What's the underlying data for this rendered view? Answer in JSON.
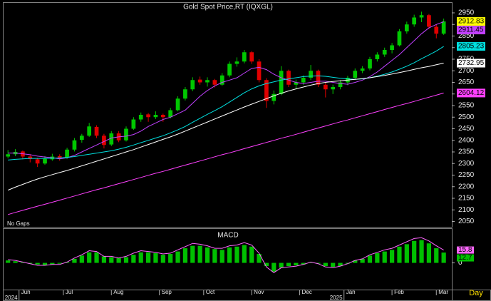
{
  "chart_data": [
    {
      "type": "candlestick",
      "title": "Gold Spot Price,RT (IQXGL)",
      "annotation": "No Gaps",
      "up_color": "#00c800",
      "down_color": "#e00000",
      "ylim": [
        2030,
        2990
      ],
      "yticks": [
        2050,
        2100,
        2150,
        2200,
        2250,
        2300,
        2350,
        2400,
        2450,
        2500,
        2550,
        2600,
        2650,
        2700,
        2750,
        2800,
        2850,
        2900,
        2950
      ],
      "xlim": [
        -0.5,
        60
      ],
      "last_color": "#ffff00",
      "ohlc": [
        [
          2330,
          2358,
          2322,
          2340
        ],
        [
          2340,
          2362,
          2332,
          2350
        ],
        [
          2352,
          2356,
          2318,
          2330
        ],
        [
          2330,
          2340,
          2305,
          2320
        ],
        [
          2318,
          2325,
          2285,
          2300
        ],
        [
          2300,
          2332,
          2295,
          2320
        ],
        [
          2318,
          2342,
          2312,
          2330
        ],
        [
          2332,
          2340,
          2312,
          2325
        ],
        [
          2325,
          2368,
          2320,
          2360
        ],
        [
          2360,
          2410,
          2352,
          2400
        ],
        [
          2402,
          2428,
          2390,
          2420
        ],
        [
          2420,
          2475,
          2415,
          2460
        ],
        [
          2458,
          2465,
          2410,
          2420
        ],
        [
          2420,
          2428,
          2365,
          2380
        ],
        [
          2382,
          2440,
          2375,
          2430
        ],
        [
          2430,
          2440,
          2392,
          2400
        ],
        [
          2400,
          2460,
          2395,
          2450
        ],
        [
          2450,
          2500,
          2445,
          2490
        ],
        [
          2490,
          2520,
          2480,
          2510
        ],
        [
          2512,
          2518,
          2480,
          2500
        ],
        [
          2500,
          2525,
          2492,
          2510
        ],
        [
          2510,
          2515,
          2480,
          2500
        ],
        [
          2500,
          2540,
          2495,
          2530
        ],
        [
          2530,
          2590,
          2525,
          2580
        ],
        [
          2580,
          2630,
          2572,
          2620
        ],
        [
          2620,
          2672,
          2612,
          2660
        ],
        [
          2662,
          2675,
          2640,
          2650
        ],
        [
          2650,
          2672,
          2632,
          2660
        ],
        [
          2660,
          2665,
          2628,
          2640
        ],
        [
          2640,
          2690,
          2635,
          2680
        ],
        [
          2680,
          2740,
          2672,
          2730
        ],
        [
          2730,
          2758,
          2718,
          2740
        ],
        [
          2740,
          2790,
          2732,
          2780
        ],
        [
          2780,
          2785,
          2730,
          2740
        ],
        [
          2740,
          2750,
          2650,
          2660
        ],
        [
          2660,
          2668,
          2540,
          2570
        ],
        [
          2570,
          2615,
          2555,
          2600
        ],
        [
          2600,
          2720,
          2595,
          2700
        ],
        [
          2700,
          2705,
          2630,
          2640
        ],
        [
          2640,
          2662,
          2620,
          2650
        ],
        [
          2650,
          2680,
          2640,
          2670
        ],
        [
          2670,
          2725,
          2660,
          2700
        ],
        [
          2700,
          2705,
          2630,
          2640
        ],
        [
          2640,
          2648,
          2585,
          2620
        ],
        [
          2620,
          2640,
          2600,
          2630
        ],
        [
          2630,
          2660,
          2620,
          2650
        ],
        [
          2650,
          2678,
          2638,
          2670
        ],
        [
          2670,
          2710,
          2662,
          2700
        ],
        [
          2700,
          2720,
          2690,
          2710
        ],
        [
          2710,
          2760,
          2702,
          2750
        ],
        [
          2750,
          2780,
          2740,
          2770
        ],
        [
          2770,
          2800,
          2760,
          2790
        ],
        [
          2790,
          2820,
          2775,
          2810
        ],
        [
          2810,
          2880,
          2805,
          2870
        ],
        [
          2870,
          2912,
          2860,
          2900
        ],
        [
          2900,
          2942,
          2890,
          2930
        ],
        [
          2930,
          2955,
          2910,
          2940
        ],
        [
          2940,
          2945,
          2880,
          2890
        ],
        [
          2890,
          2900,
          2840,
          2860
        ],
        [
          2860,
          2925,
          2855,
          2912.83
        ]
      ],
      "series": [
        {
          "color": "#c040ff",
          "values": [
            2345,
            2345,
            2342,
            2338,
            2332,
            2328,
            2325,
            2320,
            2325,
            2335,
            2350,
            2365,
            2380,
            2395,
            2410,
            2415,
            2418,
            2425,
            2440,
            2460,
            2475,
            2490,
            2500,
            2515,
            2530,
            2560,
            2590,
            2615,
            2635,
            2650,
            2660,
            2670,
            2690,
            2710,
            2715,
            2705,
            2685,
            2670,
            2660,
            2650,
            2645,
            2650,
            2655,
            2655,
            2650,
            2645,
            2642,
            2650,
            2660,
            2675,
            2695,
            2720,
            2745,
            2770,
            2800,
            2830,
            2860,
            2885,
            2900,
            2911.45
          ]
        },
        {
          "color": "#00e0e0",
          "values": [
            2315,
            2318,
            2320,
            2322,
            2322,
            2322,
            2323,
            2324,
            2326,
            2330,
            2335,
            2340,
            2345,
            2350,
            2355,
            2362,
            2370,
            2380,
            2390,
            2400,
            2410,
            2420,
            2432,
            2445,
            2460,
            2478,
            2495,
            2512,
            2528,
            2545,
            2565,
            2585,
            2605,
            2622,
            2635,
            2645,
            2652,
            2660,
            2665,
            2670,
            2675,
            2677,
            2678,
            2676,
            2672,
            2668,
            2665,
            2663,
            2665,
            2670,
            2677,
            2685,
            2695,
            2707,
            2720,
            2735,
            2752,
            2768,
            2785,
            2805.23
          ]
        },
        {
          "color": "#ffffff",
          "values": [
            2185,
            2198,
            2210,
            2222,
            2233,
            2243,
            2252,
            2261,
            2270,
            2280,
            2290,
            2300,
            2310,
            2320,
            2330,
            2340,
            2350,
            2360,
            2371,
            2382,
            2393,
            2404,
            2415,
            2427,
            2440,
            2453,
            2466,
            2479,
            2492,
            2505,
            2518,
            2531,
            2544,
            2556,
            2568,
            2580,
            2592,
            2603,
            2613,
            2622,
            2630,
            2638,
            2645,
            2650,
            2654,
            2657,
            2660,
            2663,
            2666,
            2670,
            2675,
            2680,
            2686,
            2692,
            2699,
            2706,
            2713,
            2719,
            2726,
            2732.95
          ]
        },
        {
          "color": "#ff40ff",
          "values": [
            2080,
            2089,
            2098,
            2107,
            2116,
            2124,
            2133,
            2142,
            2151,
            2160,
            2169,
            2178,
            2187,
            2195,
            2204,
            2213,
            2222,
            2231,
            2240,
            2249,
            2258,
            2266,
            2275,
            2284,
            2293,
            2302,
            2311,
            2320,
            2329,
            2338,
            2346,
            2355,
            2364,
            2373,
            2382,
            2391,
            2400,
            2409,
            2417,
            2426,
            2435,
            2444,
            2453,
            2462,
            2471,
            2480,
            2488,
            2497,
            2506,
            2515,
            2524,
            2533,
            2542,
            2551,
            2559,
            2568,
            2577,
            2586,
            2595,
            2604.12
          ]
        }
      ]
    },
    {
      "type": "macd",
      "title": "MACD",
      "ylim": [
        -32,
        40
      ],
      "yticks": [
        0
      ],
      "xlim": [
        -0.5,
        60
      ],
      "xticks": [
        {
          "value": 1.5,
          "label": "Jun"
        },
        {
          "value": 7.5,
          "label": "Jul"
        },
        {
          "value": 14,
          "label": "Aug"
        },
        {
          "value": 20.5,
          "label": "Sep"
        },
        {
          "value": 26.5,
          "label": "Oct"
        },
        {
          "value": 33,
          "label": "Nov"
        },
        {
          "value": 39.5,
          "label": "Dec"
        },
        {
          "value": 45.5,
          "label": "Jan"
        },
        {
          "value": 52,
          "label": "Feb"
        },
        {
          "value": 58,
          "label": "Mar"
        }
      ],
      "year_ticks": [
        {
          "value": 1.5,
          "label": "2024"
        },
        {
          "value": 45.5,
          "label": "2025"
        }
      ],
      "period": "Day",
      "series": [
        {
          "color": "#00c000",
          "style": "bar",
          "values": [
            3,
            2,
            1,
            -1,
            -2,
            -3,
            -2,
            -1,
            1,
            5,
            9,
            13,
            13,
            8,
            7,
            6,
            7,
            10,
            13,
            13,
            12,
            10,
            11,
            14,
            18,
            21,
            21,
            19,
            17,
            16,
            19,
            20,
            22,
            20,
            11,
            -4,
            -11,
            -6,
            -4,
            -3,
            -2,
            1,
            -1,
            -4,
            -5,
            -4,
            -1,
            3,
            5,
            9,
            12,
            14,
            16,
            20,
            23,
            27,
            28,
            24,
            18,
            12.7
          ]
        },
        {
          "color": "#ff66ff",
          "style": "line",
          "values": [
            4,
            3,
            1,
            -1,
            -3,
            -3,
            -2,
            -2,
            1,
            6,
            10,
            15,
            14,
            8,
            8,
            6,
            8,
            12,
            15,
            14,
            13,
            11,
            12,
            16,
            20,
            24,
            23,
            21,
            18,
            18,
            21,
            22,
            25,
            22,
            12,
            -5,
            -12,
            -6,
            -5,
            -4,
            -2,
            1,
            -1,
            -5,
            -6,
            -4,
            -1,
            3,
            5,
            10,
            13,
            16,
            18,
            22,
            26,
            30,
            31,
            27,
            21,
            15.8
          ]
        }
      ]
    }
  ]
}
